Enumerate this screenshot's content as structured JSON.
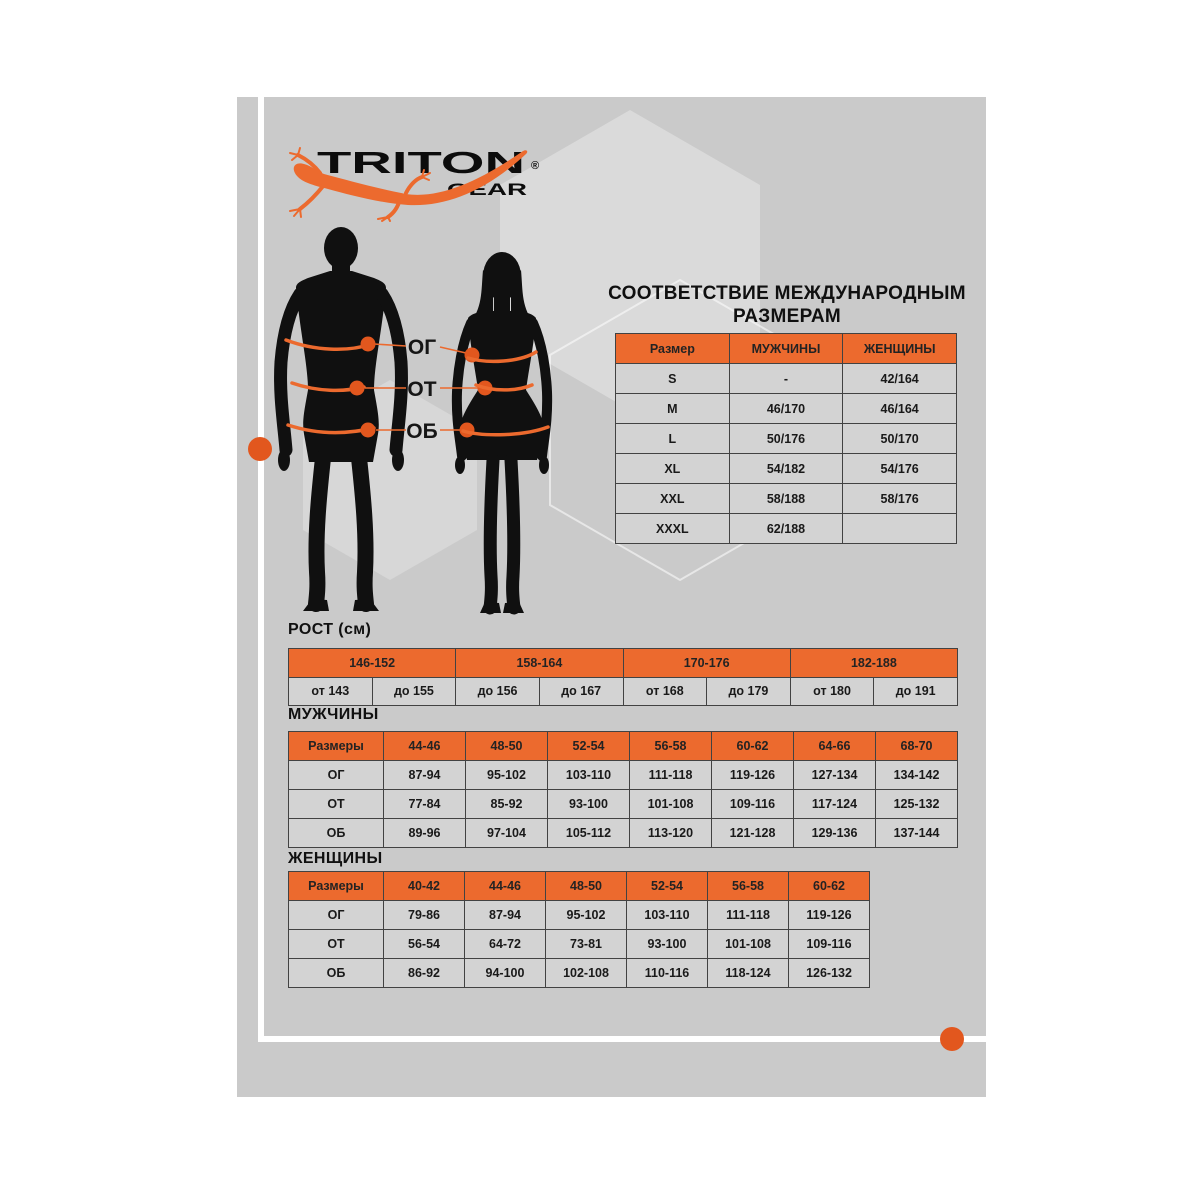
{
  "brand": {
    "name": "TRITON",
    "sub": "GEAR",
    "registered": "®"
  },
  "measure_labels": {
    "chest": "ОГ",
    "waist": "ОТ",
    "hips": "ОБ"
  },
  "intl": {
    "title_line1": "СООТВЕТСТВИЕ МЕЖДУНАРОДНЫМ",
    "title_line2": "РАЗМЕРАМ",
    "headers": [
      "Размер",
      "МУЖЧИНЫ",
      "ЖЕНЩИНЫ"
    ],
    "rows": [
      [
        "S",
        "-",
        "42/164"
      ],
      [
        "M",
        "46/170",
        "46/164"
      ],
      [
        "L",
        "50/176",
        "50/170"
      ],
      [
        "XL",
        "54/182",
        "54/176"
      ],
      [
        "XXL",
        "58/188",
        "58/176"
      ],
      [
        "XXXL",
        "62/188",
        ""
      ]
    ]
  },
  "rost": {
    "heading": "РОСТ (см)",
    "ranges": [
      "146-152",
      "158-164",
      "170-176",
      "182-188"
    ],
    "bounds": [
      "от 143",
      "до 155",
      "до 156",
      "до 167",
      "от 168",
      "до 179",
      "от 180",
      "до 191"
    ]
  },
  "men": {
    "heading": "МУЖЧИНЫ",
    "header": [
      "Размеры",
      "44-46",
      "48-50",
      "52-54",
      "56-58",
      "60-62",
      "64-66",
      "68-70"
    ],
    "rows": [
      [
        "ОГ",
        "87-94",
        "95-102",
        "103-110",
        "111-118",
        "119-126",
        "127-134",
        "134-142"
      ],
      [
        "ОТ",
        "77-84",
        "85-92",
        "93-100",
        "101-108",
        "109-116",
        "117-124",
        "125-132"
      ],
      [
        "ОБ",
        "89-96",
        "97-104",
        "105-112",
        "113-120",
        "121-128",
        "129-136",
        "137-144"
      ]
    ]
  },
  "women": {
    "heading": "ЖЕНЩИНЫ",
    "header": [
      "Размеры",
      "40-42",
      "44-46",
      "48-50",
      "52-54",
      "56-58",
      "60-62"
    ],
    "rows": [
      [
        "ОГ",
        "79-86",
        "87-94",
        "95-102",
        "103-110",
        "111-118",
        "119-126"
      ],
      [
        "ОТ",
        "56-54",
        "64-72",
        "73-81",
        "93-100",
        "101-108",
        "109-116"
      ],
      [
        "ОБ",
        "86-92",
        "94-100",
        "102-108",
        "110-116",
        "118-124",
        "126-132"
      ]
    ]
  },
  "colors": {
    "accent": "#EC6A2E",
    "accent_deep": "#E2571E",
    "panel": "#CACACA",
    "cell": "#D3D3D3",
    "ink": "#191919"
  }
}
